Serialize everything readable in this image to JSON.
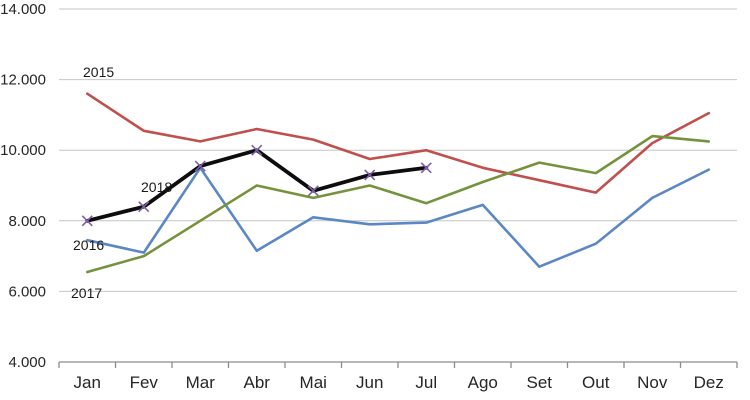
{
  "chart_data": {
    "type": "line",
    "title": "",
    "xlabel": "",
    "ylabel": "",
    "categories": [
      "Jan",
      "Fev",
      "Mar",
      "Abr",
      "Mai",
      "Jun",
      "Jul",
      "Ago",
      "Set",
      "Out",
      "Nov",
      "Dez"
    ],
    "y_axis": {
      "min": 4000,
      "max": 14000,
      "step": 2000,
      "tick_values": [
        4000,
        6000,
        8000,
        10000,
        12000,
        14000
      ],
      "tick_labels": [
        "4.000",
        "6.000",
        "8.000",
        "10.000",
        "12.000",
        "14.000"
      ],
      "grid": true
    },
    "legend_position": "inline-labels-near-line-start",
    "series": [
      {
        "name": "2015",
        "color": "#C0504D",
        "marker": "none",
        "values": [
          11600,
          10550,
          10250,
          10600,
          10300,
          9750,
          10000,
          9500,
          9150,
          8800,
          10200,
          11050
        ]
      },
      {
        "name": "2016",
        "color": "#5B87C5",
        "marker": "none",
        "values": [
          7450,
          7100,
          9500,
          7150,
          8100,
          7900,
          7950,
          8450,
          6700,
          7350,
          8650,
          9450
        ]
      },
      {
        "name": "2017",
        "color": "#76923C",
        "marker": "none",
        "values": [
          6550,
          7000,
          8000,
          9000,
          8650,
          9000,
          8500,
          9100,
          9650,
          9350,
          10400,
          10250
        ]
      },
      {
        "name": "2018",
        "color": "#0D0D0D",
        "marker": "x",
        "marker_color": "#7E5FA5",
        "values": [
          8000,
          8400,
          9550,
          10000,
          8850,
          9300,
          9500
        ]
      }
    ]
  },
  "colors": {
    "background": "#FFFFFF",
    "gridline": "#C6C6C6",
    "axis_line": "#8C8C8C",
    "label_text": "#262626"
  }
}
